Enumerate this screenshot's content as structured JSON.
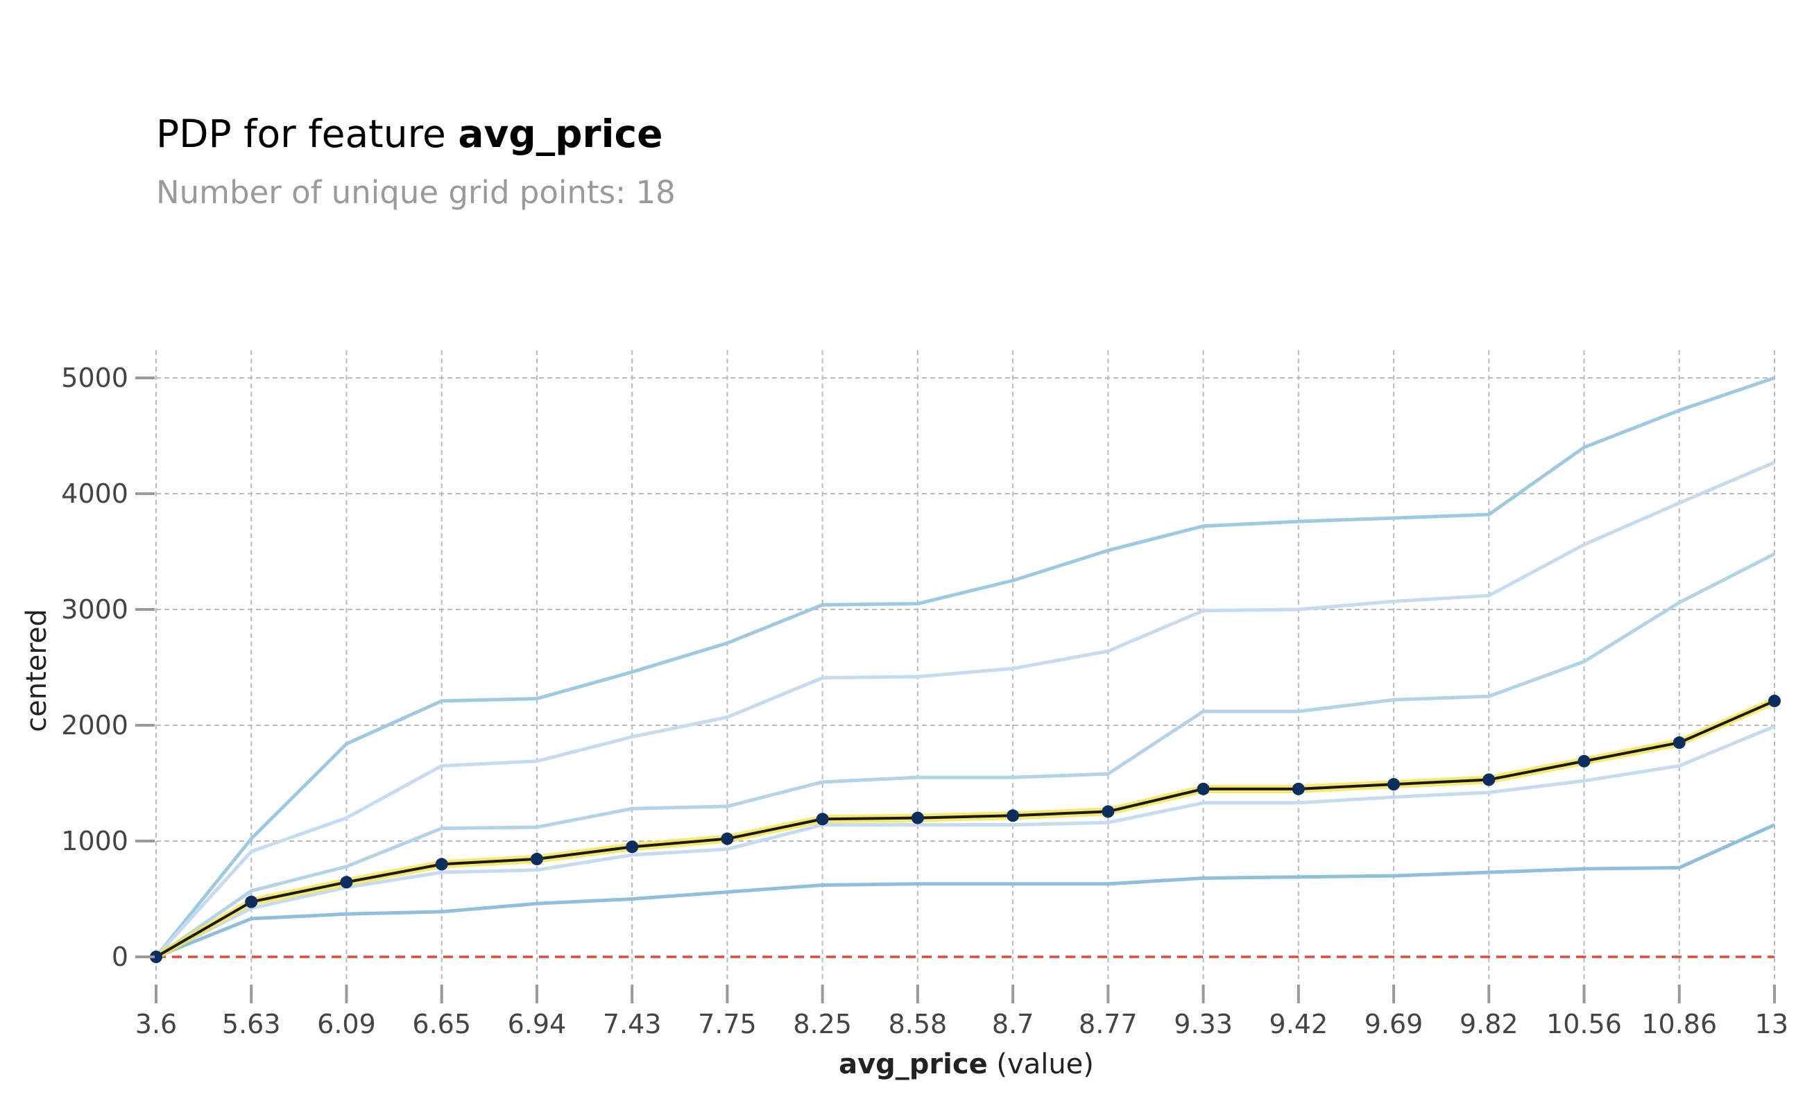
{
  "title": {
    "prefix": "PDP for feature ",
    "feature": "avg_price"
  },
  "subtitle": "Number of unique grid points: 18",
  "chart_data": {
    "type": "line",
    "title": "PDP for feature avg_price",
    "subtitle": "Number of unique grid points: 18",
    "xlabel": {
      "bold": "avg_price",
      "normal": " (value)"
    },
    "ylabel": "centered",
    "x_categories": [
      "3.6",
      "5.63",
      "6.09",
      "6.65",
      "6.94",
      "7.43",
      "7.75",
      "8.25",
      "8.58",
      "8.7",
      "8.77",
      "9.33",
      "9.42",
      "9.69",
      "9.82",
      "10.56",
      "10.86",
      "13"
    ],
    "yticks": [
      0,
      1000,
      2000,
      3000,
      4000,
      5000
    ],
    "ylim": [
      -250,
      5250
    ],
    "grid": true,
    "reference_line": {
      "y": 0,
      "color": "#e34a33",
      "style": "dashed"
    },
    "ice_lines": [
      {
        "color": "#9ecae1",
        "values": [
          0,
          1020,
          1840,
          2210,
          2230,
          2460,
          2710,
          3040,
          3050,
          3250,
          3510,
          3720,
          3760,
          3790,
          3820,
          4400,
          4720,
          5000
        ]
      },
      {
        "color": "#c6dbef",
        "values": [
          0,
          910,
          1200,
          1650,
          1690,
          1900,
          2070,
          2410,
          2420,
          2490,
          2640,
          2990,
          3000,
          3070,
          3120,
          3560,
          3920,
          4270
        ]
      },
      {
        "color": "#b3d3e6",
        "values": [
          0,
          570,
          780,
          1110,
          1120,
          1280,
          1300,
          1510,
          1550,
          1550,
          1580,
          2120,
          2120,
          2220,
          2250,
          2550,
          3060,
          3480
        ]
      },
      {
        "color": "#c6dbef",
        "values": [
          0,
          420,
          600,
          730,
          750,
          880,
          930,
          1140,
          1140,
          1140,
          1160,
          1330,
          1330,
          1380,
          1420,
          1520,
          1650,
          1990
        ]
      },
      {
        "color": "#8ebfdc",
        "values": [
          0,
          330,
          370,
          390,
          460,
          500,
          560,
          620,
          630,
          630,
          630,
          680,
          690,
          700,
          730,
          760,
          770,
          1140
        ]
      }
    ],
    "pdp_line": {
      "line_color": "#1a1a1a",
      "band_color": "#f5e24a",
      "marker_color": "#0b2e5e",
      "values": [
        0,
        475,
        645,
        800,
        845,
        950,
        1020,
        1190,
        1200,
        1220,
        1255,
        1450,
        1450,
        1490,
        1530,
        1690,
        1850,
        2210
      ]
    },
    "colors": {
      "grid": "#bbbbbb",
      "tick_mark": "#9a9a9a"
    }
  }
}
